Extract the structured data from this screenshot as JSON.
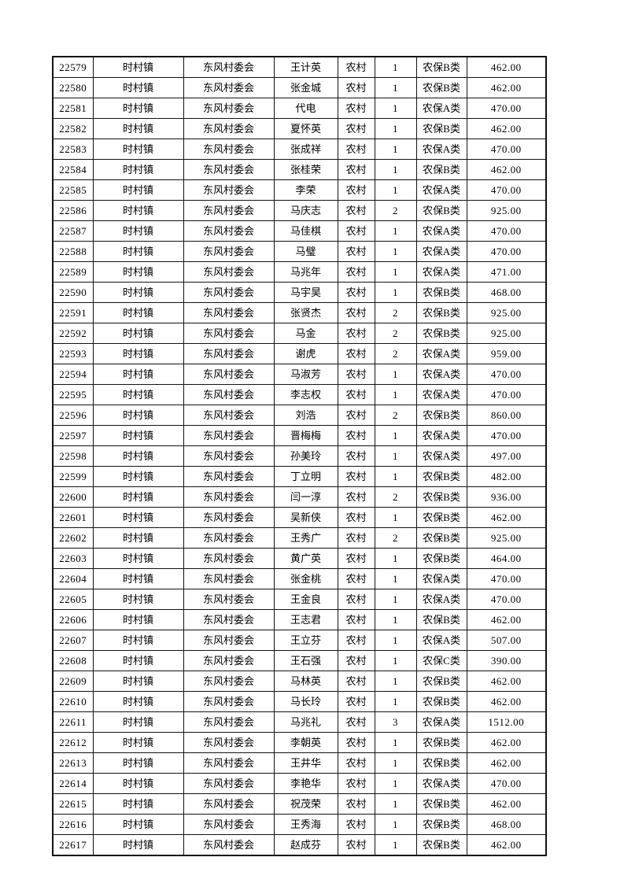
{
  "page": {
    "background": "#ffffff"
  },
  "colors": {
    "border": "#121212",
    "text": "#000000"
  },
  "table": {
    "column_keys": [
      "serial-number",
      "town",
      "village-committee",
      "person-name",
      "residence-type",
      "person-count",
      "insurance-category",
      "amount"
    ],
    "numeric_columns": [
      0,
      5,
      7
    ],
    "rows": [
      [
        "22579",
        "时村镇",
        "东风村委会",
        "王计英",
        "农村",
        "1",
        "农保B类",
        "462.00"
      ],
      [
        "22580",
        "时村镇",
        "东风村委会",
        "张金城",
        "农村",
        "1",
        "农保B类",
        "462.00"
      ],
      [
        "22581",
        "时村镇",
        "东风村委会",
        "代电",
        "农村",
        "1",
        "农保A类",
        "470.00"
      ],
      [
        "22582",
        "时村镇",
        "东风村委会",
        "夏怀英",
        "农村",
        "1",
        "农保B类",
        "462.00"
      ],
      [
        "22583",
        "时村镇",
        "东风村委会",
        "张成祥",
        "农村",
        "1",
        "农保A类",
        "470.00"
      ],
      [
        "22584",
        "时村镇",
        "东风村委会",
        "张桂荣",
        "农村",
        "1",
        "农保B类",
        "462.00"
      ],
      [
        "22585",
        "时村镇",
        "东风村委会",
        "李荣",
        "农村",
        "1",
        "农保A类",
        "470.00"
      ],
      [
        "22586",
        "时村镇",
        "东风村委会",
        "马庆志",
        "农村",
        "2",
        "农保B类",
        "925.00"
      ],
      [
        "22587",
        "时村镇",
        "东风村委会",
        "马佳棋",
        "农村",
        "1",
        "农保A类",
        "470.00"
      ],
      [
        "22588",
        "时村镇",
        "东风村委会",
        "马璧",
        "农村",
        "1",
        "农保A类",
        "470.00"
      ],
      [
        "22589",
        "时村镇",
        "东风村委会",
        "马兆年",
        "农村",
        "1",
        "农保A类",
        "471.00"
      ],
      [
        "22590",
        "时村镇",
        "东风村委会",
        "马宇昊",
        "农村",
        "1",
        "农保B类",
        "468.00"
      ],
      [
        "22591",
        "时村镇",
        "东风村委会",
        "张贤杰",
        "农村",
        "2",
        "农保B类",
        "925.00"
      ],
      [
        "22592",
        "时村镇",
        "东风村委会",
        "马金",
        "农村",
        "2",
        "农保B类",
        "925.00"
      ],
      [
        "22593",
        "时村镇",
        "东风村委会",
        "谢虎",
        "农村",
        "2",
        "农保A类",
        "959.00"
      ],
      [
        "22594",
        "时村镇",
        "东风村委会",
        "马淑芳",
        "农村",
        "1",
        "农保A类",
        "470.00"
      ],
      [
        "22595",
        "时村镇",
        "东风村委会",
        "李志权",
        "农村",
        "1",
        "农保A类",
        "470.00"
      ],
      [
        "22596",
        "时村镇",
        "东风村委会",
        "刘浩",
        "农村",
        "2",
        "农保B类",
        "860.00"
      ],
      [
        "22597",
        "时村镇",
        "东风村委会",
        "晋梅梅",
        "农村",
        "1",
        "农保A类",
        "470.00"
      ],
      [
        "22598",
        "时村镇",
        "东风村委会",
        "孙美玲",
        "农村",
        "1",
        "农保A类",
        "497.00"
      ],
      [
        "22599",
        "时村镇",
        "东风村委会",
        "丁立明",
        "农村",
        "1",
        "农保B类",
        "482.00"
      ],
      [
        "22600",
        "时村镇",
        "东风村委会",
        "闫一淳",
        "农村",
        "2",
        "农保B类",
        "936.00"
      ],
      [
        "22601",
        "时村镇",
        "东风村委会",
        "吴新侠",
        "农村",
        "1",
        "农保B类",
        "462.00"
      ],
      [
        "22602",
        "时村镇",
        "东风村委会",
        "王秀广",
        "农村",
        "2",
        "农保B类",
        "925.00"
      ],
      [
        "22603",
        "时村镇",
        "东风村委会",
        "黄广英",
        "农村",
        "1",
        "农保B类",
        "464.00"
      ],
      [
        "22604",
        "时村镇",
        "东风村委会",
        "张金桃",
        "农村",
        "1",
        "农保A类",
        "470.00"
      ],
      [
        "22605",
        "时村镇",
        "东风村委会",
        "王金良",
        "农村",
        "1",
        "农保A类",
        "470.00"
      ],
      [
        "22606",
        "时村镇",
        "东风村委会",
        "王志君",
        "农村",
        "1",
        "农保B类",
        "462.00"
      ],
      [
        "22607",
        "时村镇",
        "东风村委会",
        "王立芬",
        "农村",
        "1",
        "农保A类",
        "507.00"
      ],
      [
        "22608",
        "时村镇",
        "东风村委会",
        "王石强",
        "农村",
        "1",
        "农保C类",
        "390.00"
      ],
      [
        "22609",
        "时村镇",
        "东风村委会",
        "马林英",
        "农村",
        "1",
        "农保B类",
        "462.00"
      ],
      [
        "22610",
        "时村镇",
        "东风村委会",
        "马长玲",
        "农村",
        "1",
        "农保B类",
        "462.00"
      ],
      [
        "22611",
        "时村镇",
        "东风村委会",
        "马兆礼",
        "农村",
        "3",
        "农保A类",
        "1512.00"
      ],
      [
        "22612",
        "时村镇",
        "东风村委会",
        "李朝英",
        "农村",
        "1",
        "农保B类",
        "462.00"
      ],
      [
        "22613",
        "时村镇",
        "东风村委会",
        "王井华",
        "农村",
        "1",
        "农保B类",
        "462.00"
      ],
      [
        "22614",
        "时村镇",
        "东风村委会",
        "李艳华",
        "农村",
        "1",
        "农保A类",
        "470.00"
      ],
      [
        "22615",
        "时村镇",
        "东风村委会",
        "祝茂荣",
        "农村",
        "1",
        "农保B类",
        "462.00"
      ],
      [
        "22616",
        "时村镇",
        "东风村委会",
        "王秀海",
        "农村",
        "1",
        "农保B类",
        "468.00"
      ],
      [
        "22617",
        "时村镇",
        "东风村委会",
        "赵成芬",
        "农村",
        "1",
        "农保B类",
        "462.00"
      ]
    ]
  }
}
